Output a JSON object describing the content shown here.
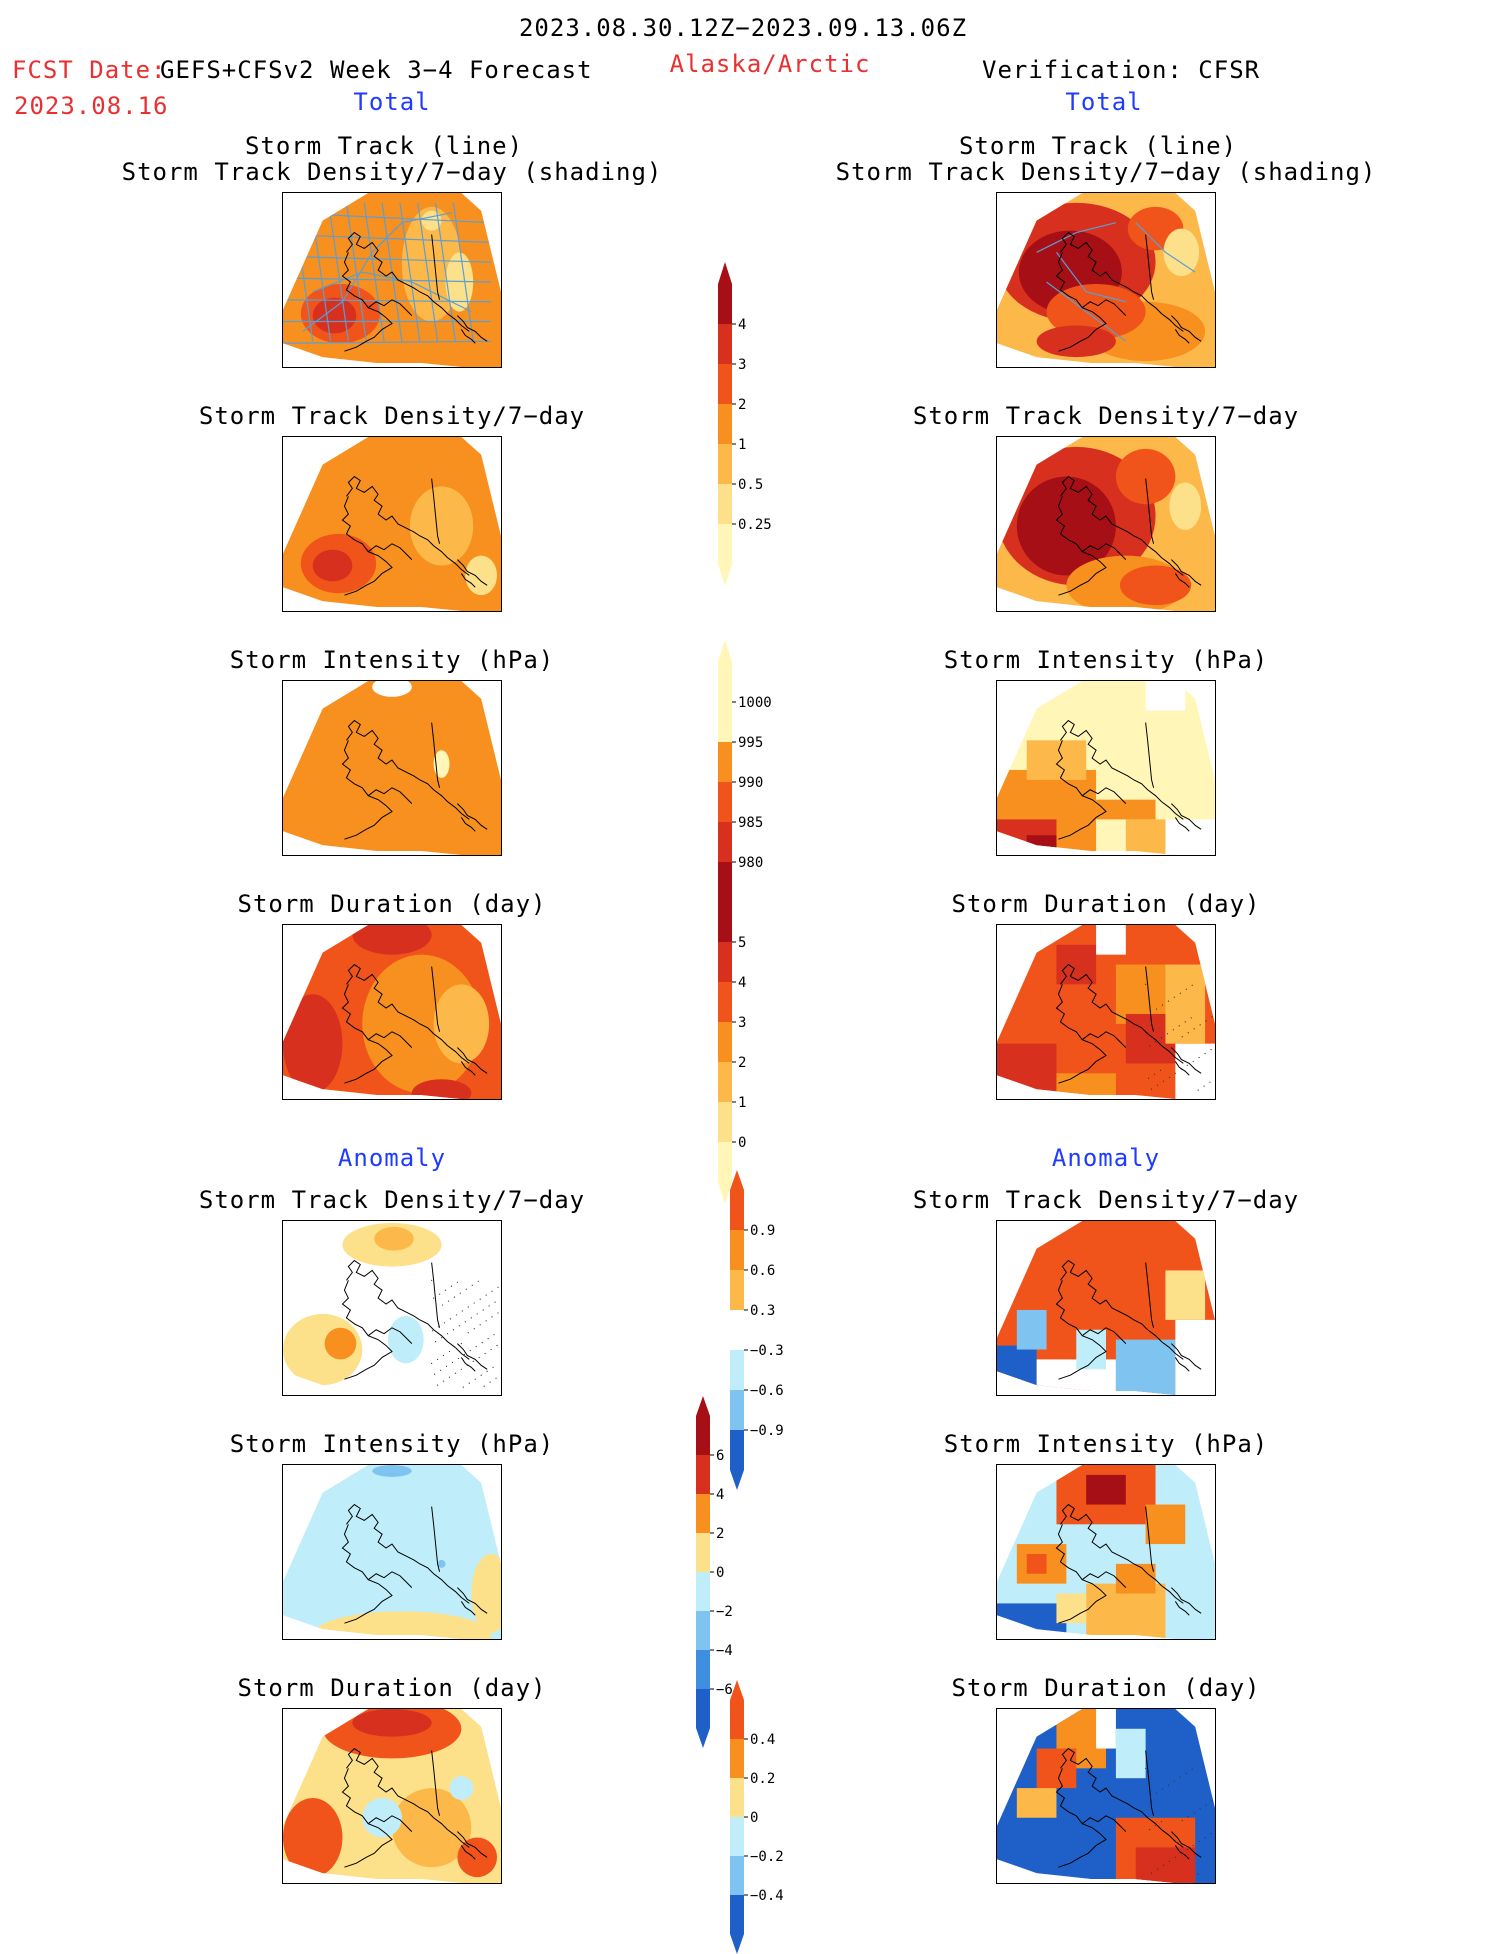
{
  "header": {
    "period": "2023.08.30.12Z−2023.09.13.06Z",
    "fcst_label": "FCST Date:",
    "model": "GEFS+CFSv2 Week 3−4 Forecast",
    "fcst_date": "2023.08.16",
    "region": "Alaska/Arctic",
    "verification": "Verification: CFSR"
  },
  "sections": {
    "total": "Total",
    "anomaly": "Anomaly"
  },
  "titles": {
    "track_line": "Storm Track (line)",
    "track_shading": "Storm Track Density/7−day (shading)",
    "density": "Storm Track Density/7−day",
    "intensity": "Storm Intensity (hPa)",
    "duration": "Storm Duration (day)"
  },
  "colorbars": {
    "density_total": [
      "4",
      "3",
      "2",
      "1",
      "0.5",
      "0.25"
    ],
    "intensity_total": [
      "1000",
      "995",
      "990",
      "985",
      "980"
    ],
    "duration_total": [
      "5",
      "4",
      "3",
      "2",
      "1",
      "0"
    ],
    "density_anom": [
      "0.9",
      "0.6",
      "0.3",
      "−0.3",
      "−0.6",
      "−0.9"
    ],
    "intensity_anom": [
      "6",
      "4",
      "2",
      "0",
      "−2",
      "−4",
      "−6"
    ],
    "duration_anom": [
      "0.4",
      "0.2",
      "0",
      "−0.2",
      "−0.4"
    ]
  },
  "colors": {
    "darkred": "#a50f15",
    "red": "#d7301f",
    "redorange": "#f0541a",
    "orange": "#f7901e",
    "lightorange": "#fdb84a",
    "paleyellow": "#fde08a",
    "cream": "#fff6b8",
    "lightblue": "#bfeefa",
    "midblue": "#7fc4f0",
    "blue": "#3f8fe0",
    "darkblue": "#1f5fc8",
    "track": "#5a9fd4"
  }
}
